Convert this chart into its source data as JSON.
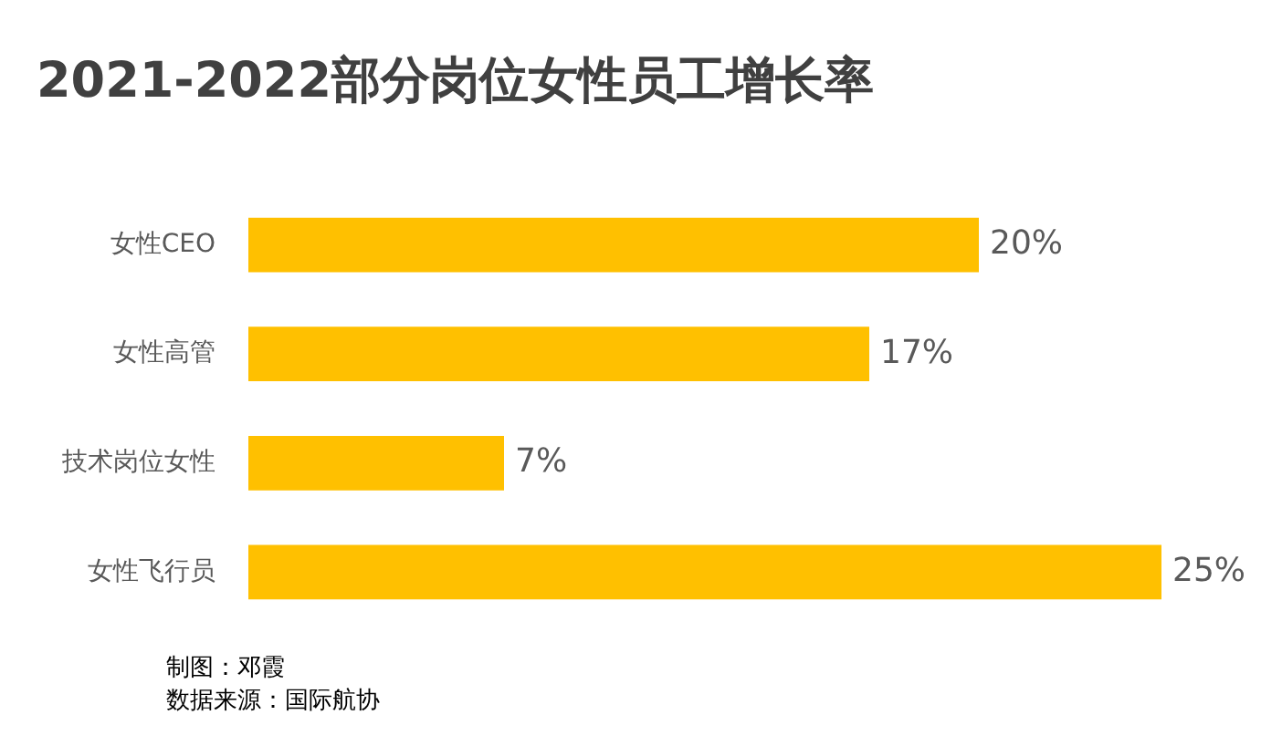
{
  "chart_data": {
    "type": "bar",
    "orientation": "horizontal",
    "title": "2021-2022部分岗位女性员工增长率",
    "categories": [
      "女性CEO",
      "女性高管",
      "技术岗位女性",
      "女性飞行员"
    ],
    "values": [
      20,
      17,
      7,
      25
    ],
    "color": "#ffc000",
    "value_labels": [
      "20%",
      "17%",
      "7%",
      "25%"
    ],
    "legend": false,
    "annotations": [
      "制图：邓霞",
      "数据来源：国际航协"
    ]
  }
}
